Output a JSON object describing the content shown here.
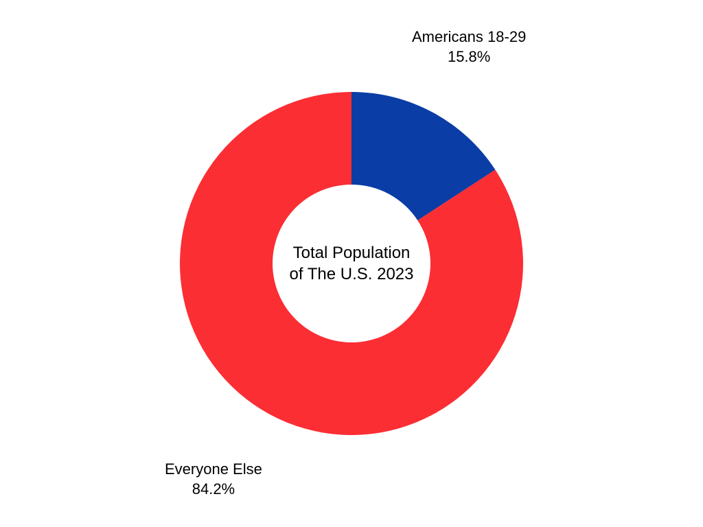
{
  "chart": {
    "type": "donut",
    "center_title_line1": "Total Population",
    "center_title_line2": "of The U.S. 2023",
    "center_fontsize": 24,
    "label_fontsize": 22,
    "text_color": "#000000",
    "background_color": "#ffffff",
    "outer_radius": 250,
    "inner_radius": 115,
    "start_angle_deg": 0,
    "slices": [
      {
        "label": "Americans 18-29",
        "value": 15.8,
        "percent_text": "15.8%",
        "color": "#0a3da5"
      },
      {
        "label": "Everyone Else",
        "value": 84.2,
        "percent_text": "84.2%",
        "color": "#fb2e34"
      }
    ]
  }
}
